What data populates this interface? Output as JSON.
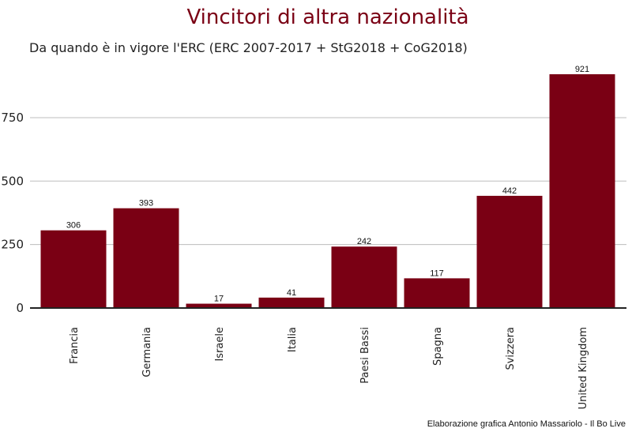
{
  "chart_data": {
    "type": "bar",
    "title": "Vincitori di altra nazionalità",
    "subtitle": "Da quando è in vigore l'ERC (ERC 2007-2017 + StG2018 + CoG2018)",
    "categories": [
      "Francia",
      "Germania",
      "Israele",
      "Italia",
      "Paesi Bassi",
      "Spagna",
      "Svizzera",
      "United Kingdom"
    ],
    "values": [
      306,
      393,
      17,
      41,
      242,
      117,
      442,
      921
    ],
    "ylim": [
      0,
      921
    ],
    "yticks": [
      0,
      250,
      500,
      750
    ],
    "xlabel": "",
    "ylabel": "",
    "grid": "horizontal",
    "legend": "none",
    "bar_color": "#7a0014",
    "caption": "Elaborazione grafica Antonio Massariolo - Il Bo Live"
  }
}
